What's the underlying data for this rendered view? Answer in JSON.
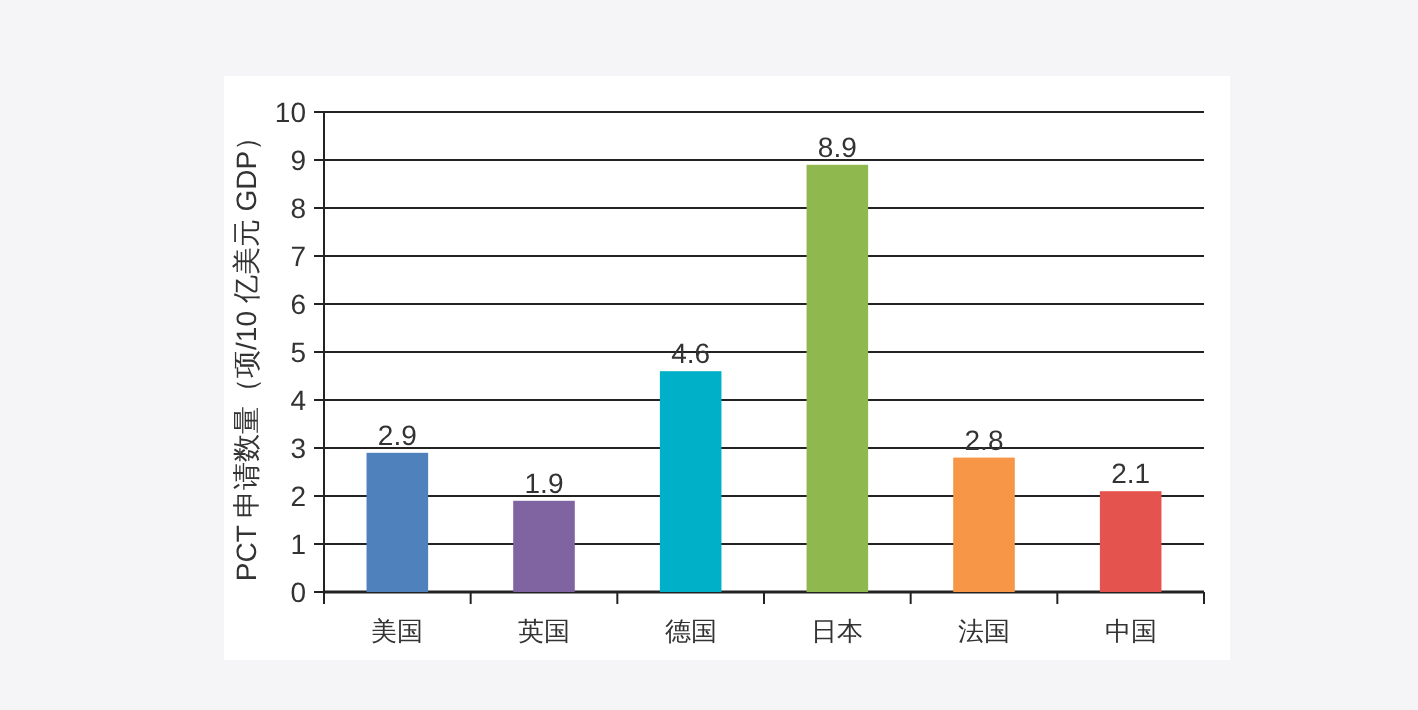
{
  "chart_data": {
    "type": "bar",
    "ylabel": "PCT 申请数量（项/10 亿美元 GDP）",
    "categories": [
      "美国",
      "英国",
      "德国",
      "日本",
      "法国",
      "中国"
    ],
    "values": [
      2.9,
      1.9,
      4.6,
      8.9,
      2.8,
      2.1
    ],
    "colors": [
      "#4f81bd",
      "#8064a2",
      "#00b0c8",
      "#8fb84e",
      "#f79646",
      "#e5534f"
    ],
    "ylim": [
      0,
      10
    ],
    "yticks": [
      0,
      1,
      2,
      3,
      4,
      5,
      6,
      7,
      8,
      9,
      10
    ],
    "grid": "y",
    "data_labels": true
  }
}
